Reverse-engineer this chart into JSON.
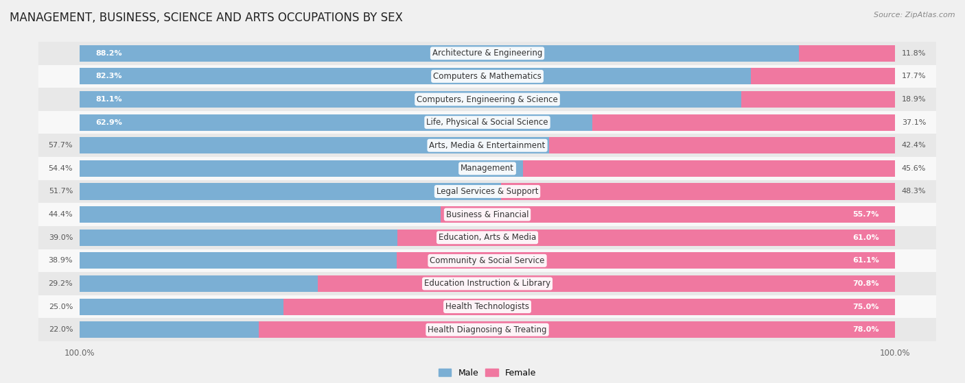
{
  "title": "MANAGEMENT, BUSINESS, SCIENCE AND ARTS OCCUPATIONS BY SEX",
  "source": "Source: ZipAtlas.com",
  "categories": [
    "Architecture & Engineering",
    "Computers & Mathematics",
    "Computers, Engineering & Science",
    "Life, Physical & Social Science",
    "Arts, Media & Entertainment",
    "Management",
    "Legal Services & Support",
    "Business & Financial",
    "Education, Arts & Media",
    "Community & Social Service",
    "Education Instruction & Library",
    "Health Technologists",
    "Health Diagnosing & Treating"
  ],
  "male": [
    88.2,
    82.3,
    81.1,
    62.9,
    57.7,
    54.4,
    51.7,
    44.4,
    39.0,
    38.9,
    29.2,
    25.0,
    22.0
  ],
  "female": [
    11.8,
    17.7,
    18.9,
    37.1,
    42.4,
    45.6,
    48.3,
    55.7,
    61.0,
    61.1,
    70.8,
    75.0,
    78.0
  ],
  "male_color": "#7bafd4",
  "female_color": "#f078a0",
  "bg_color": "#f0f0f0",
  "row_colors": [
    "#e8e8e8",
    "#f8f8f8"
  ],
  "title_fontsize": 12,
  "label_fontsize": 8.5,
  "bar_label_fontsize": 8,
  "legend_fontsize": 9,
  "axis_label_fontsize": 8.5
}
